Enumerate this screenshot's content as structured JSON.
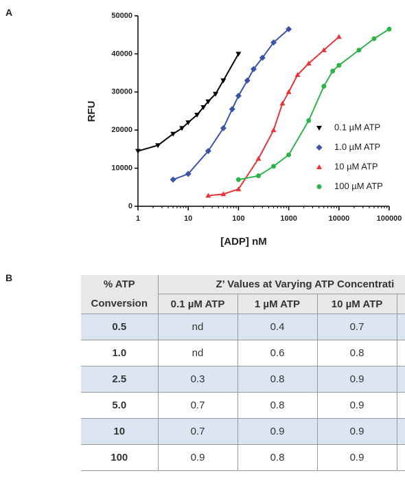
{
  "panel_labels": [
    "A",
    "B"
  ],
  "chart_data": {
    "type": "line",
    "xlabel": "[ADP] nM",
    "ylabel": "RFU",
    "xlog": true,
    "xlim": [
      1,
      100000
    ],
    "xticks": [
      1,
      10,
      100,
      1000,
      10000,
      100000
    ],
    "ylim": [
      0,
      50000
    ],
    "yticks": [
      0,
      10000,
      20000,
      30000,
      40000,
      50000
    ],
    "legend": "lower-right",
    "series": [
      {
        "name": "0.1 µM ATP",
        "color": "#000000",
        "marker": "triangle-down",
        "x": [
          1,
          2.5,
          5,
          7.5,
          10,
          15,
          20,
          25,
          35,
          50,
          100
        ],
        "values": [
          14500,
          16000,
          19000,
          20500,
          22000,
          24000,
          26000,
          27500,
          29500,
          33000,
          40000
        ]
      },
      {
        "name": "1.0 µM ATP",
        "color": "#3b53a4",
        "marker": "diamond",
        "x": [
          5,
          10,
          25,
          50,
          75,
          100,
          150,
          200,
          300,
          500,
          1000
        ],
        "values": [
          7000,
          8500,
          14500,
          20500,
          25500,
          29000,
          33000,
          36000,
          39000,
          43000,
          46500
        ]
      },
      {
        "name": "10 µM ATP",
        "color": "#e8333a",
        "marker": "triangle-up",
        "x": [
          25,
          50,
          100,
          250,
          500,
          750,
          1000,
          1500,
          2500,
          5000,
          10000
        ],
        "values": [
          2800,
          3200,
          4500,
          12500,
          20000,
          27000,
          30000,
          34500,
          37500,
          41000,
          44500
        ]
      },
      {
        "name": "100 µM ATP",
        "color": "#2eb34a",
        "marker": "circle",
        "x": [
          100,
          250,
          500,
          1000,
          2500,
          5000,
          7500,
          10000,
          25000,
          50000,
          100000
        ],
        "values": [
          7000,
          8000,
          10500,
          13500,
          22500,
          31500,
          35500,
          37000,
          41000,
          44000,
          46500
        ]
      }
    ]
  },
  "table": {
    "header": {
      "first": "% ATP Conversion",
      "group": "Z’ Values at Varying ATP Concentrati",
      "columns": [
        "0.1 µM ATP",
        "1 µM ATP",
        "10 µM ATP"
      ]
    },
    "rows": [
      [
        "0.5",
        "nd",
        "0.4",
        "0.7"
      ],
      [
        "1.0",
        "nd",
        "0.6",
        "0.8"
      ],
      [
        "2.5",
        "0.3",
        "0.8",
        "0.9"
      ],
      [
        "5.0",
        "0.7",
        "0.8",
        "0.9"
      ],
      [
        "10",
        "0.7",
        "0.9",
        "0.9"
      ],
      [
        "100",
        "0.9",
        "0.8",
        "0.9"
      ]
    ]
  }
}
